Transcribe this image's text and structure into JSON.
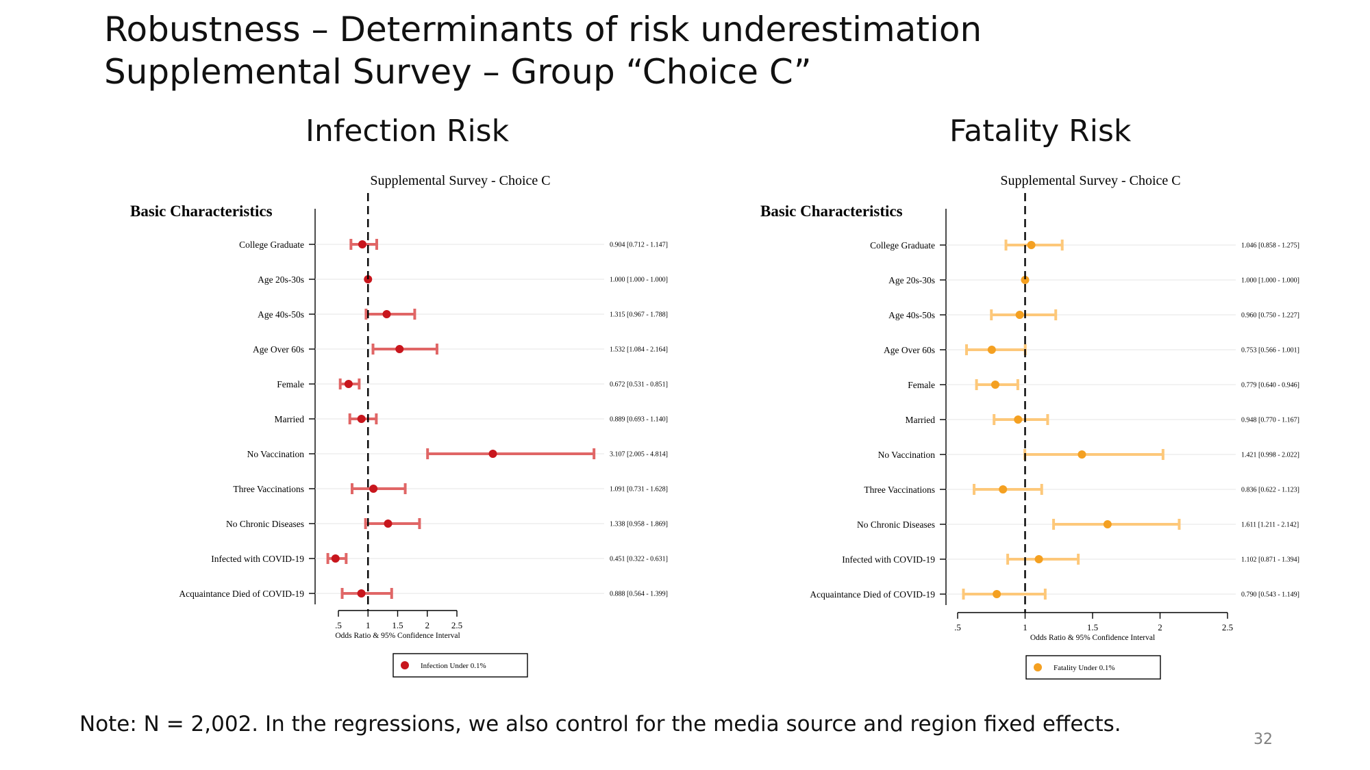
{
  "slide": {
    "title_line1": "Robustness – Determinants of risk underestimation",
    "title_line2": "Supplemental Survey – Group “Choice C”",
    "note": "Note: N = 2,002. In the regressions, we also control for the media source and region fixed effects.",
    "page_number": "32"
  },
  "panels": {
    "left_title": "Infection Risk",
    "right_title": "Fatality Risk"
  },
  "chart_data": [
    {
      "type": "scatter",
      "subtitle": "Supplemental Survey - Choice C",
      "group_label": "Basic Characteristics",
      "xlabel": "Odds Ratio & 95% Confidence Interval",
      "xlim": [
        0.5,
        2.5
      ],
      "xticks": [
        ".5",
        "1",
        "1.5",
        "2",
        "2.5"
      ],
      "reference_line": 1,
      "color": "#c8161d",
      "ci_color": "#e06666",
      "legend": {
        "label": "Infection Under 0.1%",
        "position": "bottom"
      },
      "categories": [
        "College Graduate",
        "Age 20s-30s",
        "Age 40s-50s",
        "Age Over 60s",
        "Female",
        "Married",
        "No Vaccination",
        "Three Vaccinations",
        "No Chronic Diseases",
        "Infected with COVID-19",
        "Acquaintance Died of COVID-19"
      ],
      "estimates": [
        0.904,
        1.0,
        1.315,
        1.532,
        0.672,
        0.889,
        3.107,
        1.091,
        1.338,
        0.451,
        0.888
      ],
      "ci_low": [
        0.712,
        1.0,
        0.967,
        1.084,
        0.531,
        0.693,
        2.005,
        0.731,
        0.958,
        0.322,
        0.564
      ],
      "ci_high": [
        1.147,
        1.0,
        1.788,
        2.164,
        0.851,
        1.14,
        4.814,
        1.628,
        1.869,
        0.631,
        1.399
      ],
      "labels": [
        "0.904  [0.712 - 1.147]",
        "1.000  [1.000 - 1.000]",
        "1.315  [0.967 - 1.788]",
        "1.532  [1.084 - 2.164]",
        "0.672  [0.531 - 0.851]",
        "0.889  [0.693 - 1.140]",
        "3.107  [2.005 - 4.814]",
        "1.091  [0.731 - 1.628]",
        "1.338  [0.958 - 1.869]",
        "0.451  [0.322 - 0.631]",
        "0.888  [0.564 - 1.399]"
      ]
    },
    {
      "type": "scatter",
      "subtitle": "Supplemental Survey - Choice C",
      "group_label": "Basic Characteristics",
      "xlabel": "Odds Ratio & 95% Confidence Interval",
      "xlim": [
        0.5,
        2.5
      ],
      "xticks": [
        ".5",
        "1",
        "1.5",
        "2",
        "2.5"
      ],
      "reference_line": 1,
      "color": "#f4a021",
      "ci_color": "#fdc87a",
      "legend": {
        "label": "Fatality Under 0.1%",
        "position": "bottom"
      },
      "categories": [
        "College Graduate",
        "Age 20s-30s",
        "Age 40s-50s",
        "Age Over 60s",
        "Female",
        "Married",
        "No Vaccination",
        "Three Vaccinations",
        "No Chronic Diseases",
        "Infected with COVID-19",
        "Acquaintance Died of COVID-19"
      ],
      "estimates": [
        1.046,
        1.0,
        0.96,
        0.753,
        0.779,
        0.948,
        1.421,
        0.836,
        1.611,
        1.102,
        0.79
      ],
      "ci_low": [
        0.858,
        1.0,
        0.75,
        0.566,
        0.64,
        0.77,
        0.998,
        0.622,
        1.211,
        0.871,
        0.543
      ],
      "ci_high": [
        1.275,
        1.0,
        1.227,
        1.001,
        0.946,
        1.167,
        2.022,
        1.123,
        2.142,
        1.394,
        1.149
      ],
      "labels": [
        "1.046  [0.858 - 1.275]",
        "1.000  [1.000 - 1.000]",
        "0.960  [0.750 - 1.227]",
        "0.753  [0.566 - 1.001]",
        "0.779  [0.640 - 0.946]",
        "0.948  [0.770 - 1.167]",
        "1.421  [0.998 - 2.022]",
        "0.836  [0.622 - 1.123]",
        "1.611  [1.211 - 2.142]",
        "1.102  [0.871 - 1.394]",
        "0.790  [0.543 - 1.149]"
      ]
    }
  ]
}
